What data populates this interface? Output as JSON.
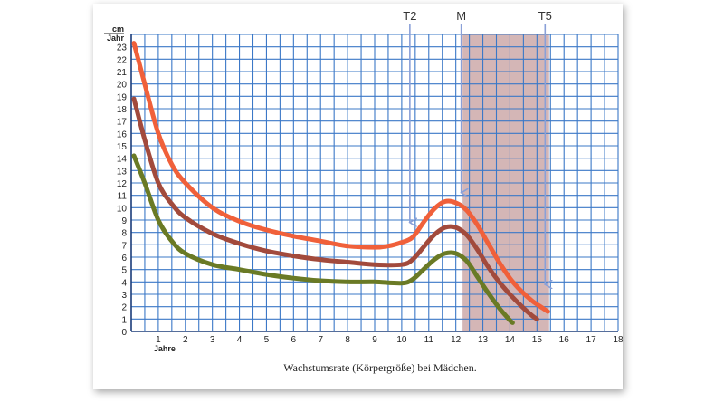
{
  "chart_data": {
    "type": "line",
    "title": "Wachstumsrate (Körpergröße) bei Mädchen.",
    "xlabel": "Jahre",
    "ylabel": "cm Jahr",
    "ylabel_top": "cm",
    "ylabel_bottom": "Jahr",
    "xlim": [
      0,
      18
    ],
    "ylim": [
      0,
      24
    ],
    "x_ticks": [
      1,
      2,
      3,
      4,
      5,
      6,
      7,
      8,
      9,
      10,
      11,
      12,
      13,
      14,
      15,
      16,
      17,
      18
    ],
    "y_ticks": [
      0,
      1,
      2,
      3,
      4,
      5,
      6,
      7,
      8,
      9,
      10,
      11,
      12,
      13,
      14,
      15,
      16,
      17,
      18,
      19,
      20,
      21,
      22,
      23
    ],
    "grid": true,
    "series": [
      {
        "color": "#f0603a",
        "points": [
          [
            0.1,
            23.3
          ],
          [
            0.5,
            20
          ],
          [
            1,
            16
          ],
          [
            1.5,
            13.5
          ],
          [
            2,
            12
          ],
          [
            3,
            10
          ],
          [
            4,
            8.9
          ],
          [
            5,
            8.2
          ],
          [
            6,
            7.7
          ],
          [
            7,
            7.3
          ],
          [
            8,
            6.9
          ],
          [
            9,
            6.8
          ],
          [
            9.5,
            6.9
          ],
          [
            10,
            7.2
          ],
          [
            10.4,
            7.6
          ],
          [
            10.8,
            8.8
          ],
          [
            11.2,
            9.9
          ],
          [
            11.6,
            10.5
          ],
          [
            12,
            10.4
          ],
          [
            12.4,
            9.8
          ],
          [
            12.8,
            8.6
          ],
          [
            13.2,
            7.1
          ],
          [
            13.6,
            5.6
          ],
          [
            14,
            4.3
          ],
          [
            14.4,
            3.3
          ],
          [
            14.8,
            2.5
          ],
          [
            15.2,
            1.9
          ],
          [
            15.4,
            1.6
          ]
        ]
      },
      {
        "color": "#a24a3c",
        "points": [
          [
            0.1,
            18.8
          ],
          [
            0.5,
            15.5
          ],
          [
            1,
            12
          ],
          [
            1.5,
            10.3
          ],
          [
            2,
            9.2
          ],
          [
            3,
            7.9
          ],
          [
            4,
            7.1
          ],
          [
            5,
            6.5
          ],
          [
            6,
            6.1
          ],
          [
            7,
            5.8
          ],
          [
            8,
            5.6
          ],
          [
            9,
            5.4
          ],
          [
            10,
            5.4
          ],
          [
            10.4,
            5.8
          ],
          [
            10.8,
            6.8
          ],
          [
            11.2,
            7.8
          ],
          [
            11.6,
            8.4
          ],
          [
            12,
            8.4
          ],
          [
            12.4,
            7.8
          ],
          [
            12.8,
            6.6
          ],
          [
            13.2,
            5.2
          ],
          [
            13.6,
            4
          ],
          [
            14,
            3
          ],
          [
            14.4,
            2.1
          ],
          [
            14.8,
            1.3
          ],
          [
            15,
            1
          ]
        ]
      },
      {
        "color": "#6a7a25",
        "points": [
          [
            0.1,
            14.2
          ],
          [
            0.5,
            12
          ],
          [
            1,
            9
          ],
          [
            1.5,
            7.3
          ],
          [
            2,
            6.3
          ],
          [
            3,
            5.4
          ],
          [
            4,
            5
          ],
          [
            5,
            4.6
          ],
          [
            6,
            4.3
          ],
          [
            7,
            4.1
          ],
          [
            8,
            4
          ],
          [
            9,
            4
          ],
          [
            10,
            3.9
          ],
          [
            10.4,
            4.2
          ],
          [
            10.8,
            5
          ],
          [
            11.2,
            5.8
          ],
          [
            11.6,
            6.3
          ],
          [
            12,
            6.3
          ],
          [
            12.4,
            5.7
          ],
          [
            12.8,
            4.4
          ],
          [
            13.2,
            3.1
          ],
          [
            13.6,
            1.9
          ],
          [
            14,
            0.9
          ],
          [
            14.1,
            0.7
          ]
        ]
      }
    ],
    "markers": [
      {
        "label": "T2",
        "x": 10.3,
        "arrow_to_y": 8.8
      },
      {
        "label": "M",
        "x": 12.2,
        "arrow_to_y": 11.2
      },
      {
        "label": "T5",
        "x": 15.3,
        "arrow_to_y": 3.8
      }
    ],
    "shaded_region": {
      "x_from": 12.25,
      "x_to": 15.45,
      "color": "#b07a7a",
      "opacity": 0.55
    },
    "grid_color": "#3b78c7",
    "arrow_color": "#8aa0d8"
  }
}
